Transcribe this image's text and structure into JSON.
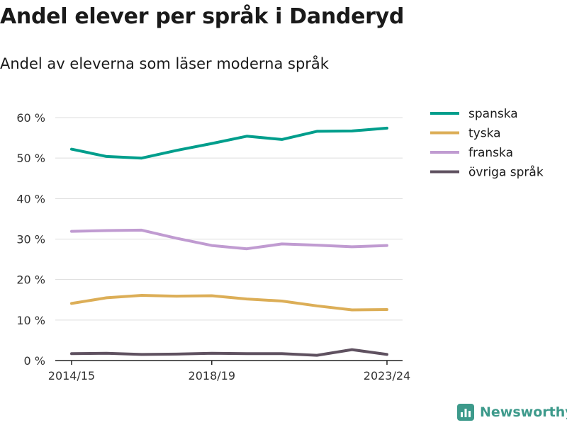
{
  "header": {
    "title": "Andel elever per språk i Danderyd",
    "subtitle": "Andel av eleverna som läser moderna språk"
  },
  "chart_data": {
    "type": "line",
    "x": [
      "2014/15",
      "2015/16",
      "2016/17",
      "2017/18",
      "2018/19",
      "2019/20",
      "2020/21",
      "2021/22",
      "2022/23",
      "2023/24"
    ],
    "x_tick_labels": [
      "2014/15",
      "2018/19",
      "2023/24"
    ],
    "y_ticks": [
      0,
      10,
      20,
      30,
      40,
      50,
      60
    ],
    "y_tick_labels": [
      "0 %",
      "10 %",
      "20 %",
      "30 %",
      "40 %",
      "50 %",
      "60 %"
    ],
    "ylim": [
      0,
      62
    ],
    "grid": true,
    "legend_position": "right",
    "series": [
      {
        "name": "spanska",
        "color": "#009e8c",
        "values": [
          52.2,
          50.4,
          50.0,
          51.9,
          53.6,
          55.4,
          54.6,
          56.6,
          56.7,
          57.4
        ]
      },
      {
        "name": "tyska",
        "color": "#dcae57",
        "values": [
          14.1,
          15.5,
          16.1,
          15.9,
          16.0,
          15.2,
          14.7,
          13.5,
          12.5,
          12.6
        ]
      },
      {
        "name": "franska",
        "color": "#c09bd1",
        "values": [
          31.9,
          32.1,
          32.2,
          30.2,
          28.4,
          27.6,
          28.8,
          28.5,
          28.1,
          28.4
        ]
      },
      {
        "name": "övriga språk",
        "color": "#5f5160",
        "values": [
          1.7,
          1.8,
          1.5,
          1.6,
          1.8,
          1.7,
          1.7,
          1.3,
          2.7,
          1.5
        ]
      }
    ]
  },
  "brand": {
    "name": "Newsworthy",
    "color": "#3d9a8b"
  }
}
